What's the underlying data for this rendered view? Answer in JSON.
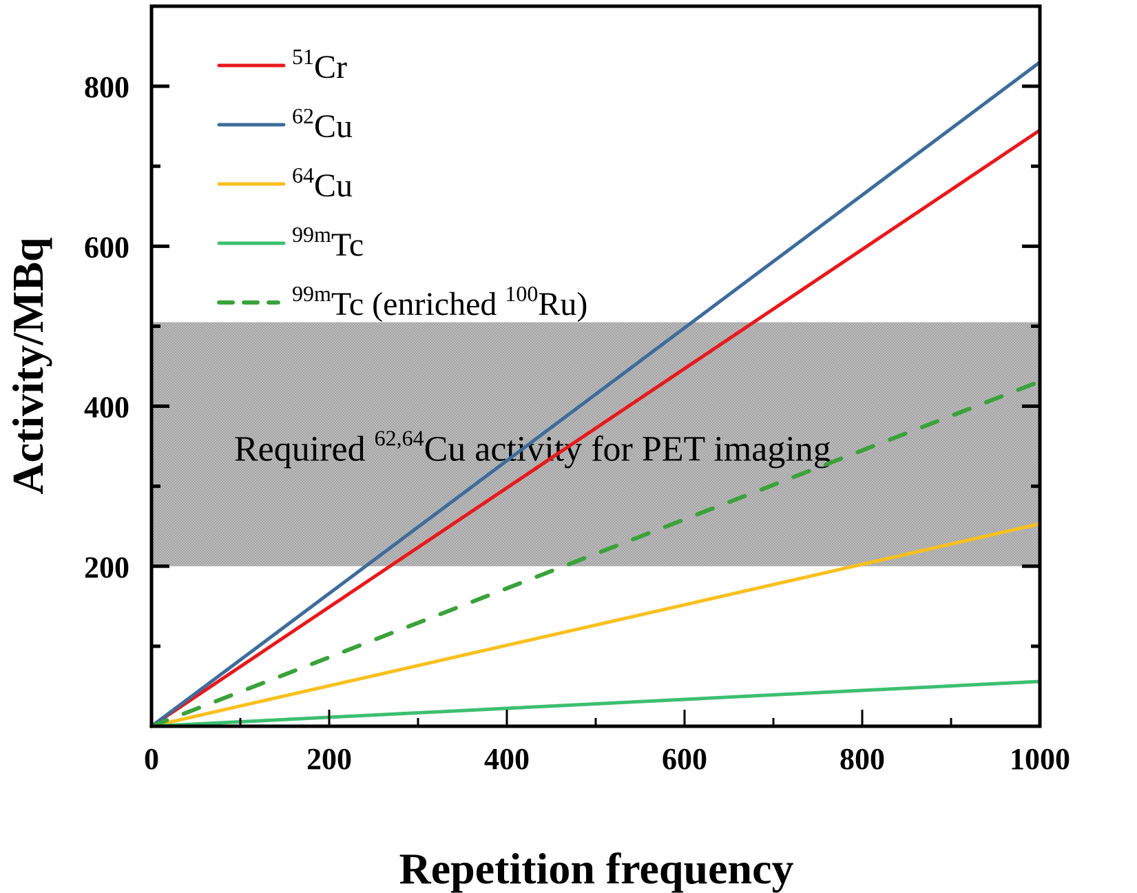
{
  "chart_data": {
    "type": "line",
    "title": "",
    "xlabel": "Repetition frequency",
    "ylabel": "Activity/MBq",
    "xlim": [
      0,
      1000
    ],
    "ylim": [
      0,
      900
    ],
    "x_ticks": [
      0,
      200,
      400,
      600,
      800,
      1000
    ],
    "x_tick_labels": [
      "0",
      "200",
      "400",
      "600",
      "800",
      "1000"
    ],
    "x_minor_ticks": [
      100,
      300,
      500,
      700,
      900
    ],
    "y_ticks": [
      200,
      400,
      600,
      800
    ],
    "y_tick_labels": [
      "200",
      "400",
      "600",
      "800"
    ],
    "y_minor_ticks": [
      100,
      300,
      500,
      700
    ],
    "grid": false,
    "legend_position": "top-left",
    "series": [
      {
        "name": "51Cr",
        "label_sup": "51",
        "label_main": "Cr",
        "label_rest": "",
        "label_sup2": "",
        "label_end": "",
        "color": "#e8191c",
        "dash": false,
        "x": [
          0,
          1000
        ],
        "values": [
          0,
          745
        ]
      },
      {
        "name": "62Cu",
        "label_sup": "62",
        "label_main": "Cu",
        "label_rest": "",
        "label_sup2": "",
        "label_end": "",
        "color": "#3e6c9b",
        "dash": false,
        "x": [
          0,
          1000
        ],
        "values": [
          0,
          830
        ]
      },
      {
        "name": "64Cu",
        "label_sup": "64",
        "label_main": "Cu",
        "label_rest": "",
        "label_sup2": "",
        "label_end": "",
        "color": "#f9c01f",
        "dash": false,
        "x": [
          0,
          1000
        ],
        "values": [
          0,
          253
        ]
      },
      {
        "name": "99mTc",
        "label_sup": "99m",
        "label_main": "Tc",
        "label_rest": "",
        "label_sup2": "",
        "label_end": "",
        "color": "#3dbf71",
        "dash": false,
        "x": [
          0,
          1000
        ],
        "values": [
          0,
          56
        ]
      },
      {
        "name": "99mTc (enriched 100Ru)",
        "label_sup": "99m",
        "label_main": "Tc",
        "label_rest": " (enriched ",
        "label_sup2": "100",
        "label_end": "Ru)",
        "color": "#3aa23a",
        "dash": true,
        "x": [
          0,
          1000
        ],
        "values": [
          0,
          431
        ]
      }
    ],
    "annotations": [
      {
        "type": "band",
        "y_from": 200,
        "y_to": 505,
        "color": "#b5b5b5",
        "text_pre": "Required ",
        "text_sup": "62,64",
        "text_post": "Cu activity for PET imaging"
      }
    ]
  }
}
